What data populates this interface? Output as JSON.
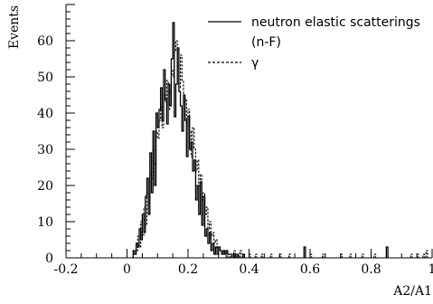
{
  "chart_data": {
    "type": "histogram-step",
    "ylabel": "Events",
    "xlabel": "A2/A1",
    "xlim": [
      -0.2,
      1.0
    ],
    "ylim": [
      0,
      70
    ],
    "x_ticks": [
      -0.2,
      0,
      0.2,
      0.4,
      0.6,
      0.8,
      1
    ],
    "x_tick_labels": [
      "-0.2",
      "0",
      "0.2",
      "0.4",
      "0.6",
      "0.8",
      "1"
    ],
    "y_ticks": [
      0,
      10,
      20,
      30,
      40,
      50,
      60
    ],
    "y_tick_labels": [
      "0",
      "10",
      "20",
      "30",
      "40",
      "50",
      "60"
    ],
    "grid": false,
    "legend_position": "top-right",
    "bin_width": 0.005,
    "series": [
      {
        "name": "neutron elastic scatterings (n-F)",
        "style": "solid",
        "x": [
          0.02,
          0.025,
          0.03,
          0.035,
          0.04,
          0.045,
          0.05,
          0.055,
          0.06,
          0.065,
          0.07,
          0.075,
          0.08,
          0.085,
          0.09,
          0.095,
          0.1,
          0.105,
          0.11,
          0.115,
          0.12,
          0.125,
          0.13,
          0.135,
          0.14,
          0.145,
          0.15,
          0.155,
          0.16,
          0.165,
          0.17,
          0.175,
          0.18,
          0.185,
          0.19,
          0.195,
          0.2,
          0.205,
          0.21,
          0.215,
          0.22,
          0.225,
          0.23,
          0.235,
          0.24,
          0.245,
          0.25,
          0.255,
          0.26,
          0.265,
          0.27,
          0.275,
          0.28,
          0.285,
          0.29,
          0.295,
          0.3,
          0.305,
          0.31,
          0.315,
          0.32,
          0.325,
          0.33,
          0.335,
          0.34,
          0.35,
          0.36,
          0.38,
          0.58,
          0.85
        ],
        "values": [
          2,
          1,
          4,
          3,
          8,
          5,
          12,
          7,
          17,
          22,
          12,
          29,
          18,
          35,
          20,
          40,
          36,
          41,
          47,
          38,
          52,
          44,
          37,
          48,
          42,
          55,
          65,
          39,
          48,
          58,
          46,
          42,
          35,
          45,
          38,
          28,
          39,
          30,
          32,
          24,
          27,
          16,
          20,
          12,
          21,
          9,
          17,
          6,
          8,
          4,
          7,
          2,
          4,
          1,
          3,
          1,
          3,
          2,
          1,
          2,
          1,
          2,
          1,
          1,
          1,
          1,
          1,
          1,
          3,
          3
        ]
      },
      {
        "name": "γ",
        "style": "dashed",
        "x": [
          0.02,
          0.025,
          0.03,
          0.035,
          0.04,
          0.045,
          0.05,
          0.055,
          0.06,
          0.065,
          0.07,
          0.075,
          0.08,
          0.085,
          0.09,
          0.095,
          0.1,
          0.105,
          0.11,
          0.115,
          0.12,
          0.125,
          0.13,
          0.135,
          0.14,
          0.145,
          0.15,
          0.155,
          0.16,
          0.165,
          0.17,
          0.175,
          0.18,
          0.185,
          0.19,
          0.195,
          0.2,
          0.205,
          0.21,
          0.215,
          0.22,
          0.225,
          0.23,
          0.235,
          0.24,
          0.245,
          0.25,
          0.255,
          0.26,
          0.265,
          0.27,
          0.275,
          0.28,
          0.285,
          0.29,
          0.295,
          0.3,
          0.305,
          0.31,
          0.315,
          0.32,
          0.33,
          0.34,
          0.35,
          0.36,
          0.37,
          0.38,
          0.4,
          0.42,
          0.44,
          0.47,
          0.5,
          0.53,
          0.6,
          0.64,
          0.7,
          0.73,
          0.77,
          0.81,
          0.93,
          0.95,
          0.97,
          0.98
        ],
        "values": [
          1,
          2,
          2,
          6,
          3,
          10,
          6,
          14,
          9,
          18,
          15,
          24,
          22,
          30,
          26,
          35,
          33,
          38,
          42,
          36,
          45,
          43,
          49,
          41,
          46,
          52,
          50,
          57,
          60,
          53,
          47,
          56,
          49,
          43,
          44,
          37,
          41,
          35,
          28,
          36,
          30,
          24,
          27,
          20,
          23,
          16,
          18,
          12,
          14,
          8,
          10,
          6,
          7,
          4,
          5,
          3,
          3,
          2,
          2,
          1,
          2,
          1,
          1,
          2,
          1,
          2,
          1,
          1,
          1,
          1,
          1,
          1,
          1,
          1,
          1,
          1,
          1,
          1,
          1,
          1,
          1,
          1,
          2
        ]
      }
    ]
  }
}
